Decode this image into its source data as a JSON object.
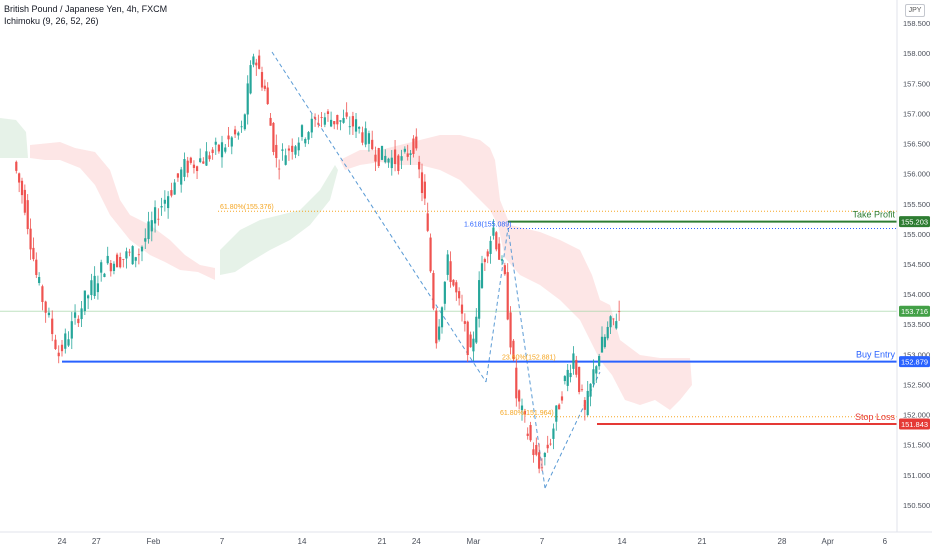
{
  "header": {
    "title": "British Pound / Japanese Yen, 4h, FXCM",
    "indicator": "Ichimoku (9, 26, 52, 26)",
    "currency": "JPY"
  },
  "colors": {
    "up": "#26a69a",
    "down": "#ef5350",
    "buy_line": "#2962ff",
    "take_profit": "#2e7d32",
    "stop_loss": "#e53935",
    "fib": "#f5a623",
    "cloud_bull": "#e3f1e6",
    "cloud_bear": "#fde3e3",
    "last_price": "#43a047"
  },
  "chart_data": {
    "type": "candlestick",
    "symbol": "GBPJPY",
    "timeframe": "4h",
    "y_axis": {
      "ylim": [
        150.3,
        158.75
      ],
      "ticks": [
        "150.500",
        "151.000",
        "151.500",
        "152.000",
        "152.500",
        "153.000",
        "153.500",
        "154.000",
        "154.500",
        "155.000",
        "155.500",
        "156.000",
        "156.500",
        "157.000",
        "157.500",
        "158.000",
        "158.500"
      ]
    },
    "x_axis": {
      "labels": [
        "24",
        "27",
        "Feb",
        "7",
        "14",
        "21",
        "24",
        "Mar",
        "7",
        "14",
        "21",
        "28",
        "Apr",
        "6"
      ]
    },
    "price_path": [
      {
        "t": "Jan 20",
        "price": 156.2
      },
      {
        "t": "Jan 21",
        "price": 155.5
      },
      {
        "t": "Jan 22",
        "price": 154.3
      },
      {
        "t": "Jan 24",
        "price": 153.0
      },
      {
        "t": "Jan 26",
        "price": 153.8
      },
      {
        "t": "Jan 28",
        "price": 154.5
      },
      {
        "t": "Jan 31",
        "price": 154.7
      },
      {
        "t": "Feb 2",
        "price": 155.5
      },
      {
        "t": "Feb 4",
        "price": 156.1
      },
      {
        "t": "Feb 7",
        "price": 156.4
      },
      {
        "t": "Feb 9",
        "price": 156.7
      },
      {
        "t": "Feb 10",
        "price": 158.0
      },
      {
        "t": "Feb 11",
        "price": 157.4
      },
      {
        "t": "Feb 12",
        "price": 156.2
      },
      {
        "t": "Feb 14",
        "price": 156.6
      },
      {
        "t": "Feb 16",
        "price": 156.95
      },
      {
        "t": "Feb 19",
        "price": 156.8
      },
      {
        "t": "Feb 21",
        "price": 156.3
      },
      {
        "t": "Feb 23",
        "price": 156.2
      },
      {
        "t": "Feb 24",
        "price": 156.5
      },
      {
        "t": "Feb 25",
        "price": 155.5
      },
      {
        "t": "Feb 26",
        "price": 153.3
      },
      {
        "t": "Feb 27",
        "price": 154.5
      },
      {
        "t": "Feb 28",
        "price": 153.8
      },
      {
        "t": "Mar 1",
        "price": 152.95
      },
      {
        "t": "Mar 2",
        "price": 154.5
      },
      {
        "t": "Mar 3",
        "price": 155.1
      },
      {
        "t": "Mar 4",
        "price": 154.2
      },
      {
        "t": "Mar 5",
        "price": 152.3
      },
      {
        "t": "Mar 6",
        "price": 151.7
      },
      {
        "t": "Mar 7",
        "price": 151.1
      },
      {
        "t": "Mar 8",
        "price": 151.6
      },
      {
        "t": "Mar 9",
        "price": 152.4
      },
      {
        "t": "Mar 10",
        "price": 153.0
      },
      {
        "t": "Mar 11",
        "price": 152.0
      },
      {
        "t": "Mar 12",
        "price": 152.9
      },
      {
        "t": "Mar 13",
        "price": 153.4
      },
      {
        "t": "Mar 14",
        "price": 153.716
      }
    ],
    "levels": [
      {
        "name": "Take Profit",
        "price": 155.203,
        "price_label": "155.203"
      },
      {
        "name": "Buy Entry",
        "price": 152.879,
        "price_label": "152.879"
      },
      {
        "name": "Stop Loss",
        "price": 151.843,
        "price_label": "151.843"
      }
    ],
    "last_price": {
      "price": 153.716,
      "label": "153.716"
    },
    "fib_annotations": [
      {
        "label": "61.80%(155.376)",
        "price": 155.376
      },
      {
        "label": "1.618(155.089)",
        "price": 155.089
      },
      {
        "label": "23.60%(152.881)",
        "price": 152.881
      },
      {
        "label": "61.80%(151.964)",
        "price": 151.964
      }
    ],
    "legend": "none",
    "grid": false
  }
}
